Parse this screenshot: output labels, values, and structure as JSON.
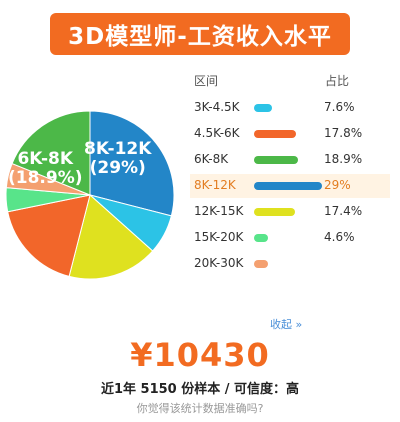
{
  "banner": {
    "title": "3D模型师-工资收入水平"
  },
  "table": {
    "range_header": "区间",
    "share_header": "占比",
    "collapse_label": "收起 »"
  },
  "summary": {
    "amount": "¥10430",
    "meta": "近1年 5150 份样本 / 可信度：高",
    "question": "你觉得该统计数据准确吗?"
  },
  "chart_data": {
    "type": "pie",
    "categories": [
      "3K-4.5K",
      "4.5K-6K",
      "6K-8K",
      "8K-12K",
      "12K-15K",
      "15K-20K",
      "20K-30K"
    ],
    "display_labels": [
      "3K-4.5K",
      "4.5K-6K",
      "6K-8K",
      "8K-12K",
      "12K-15K",
      "15K-20K",
      "20K-30K"
    ],
    "values": [
      7.6,
      17.8,
      18.9,
      29,
      17.4,
      4.6,
      4.7
    ],
    "value_labels": [
      "7.6%",
      "17.8%",
      "18.9%",
      "29%",
      "17.4%",
      "4.6%",
      ""
    ],
    "colors": [
      "#2cc3e6",
      "#f2662a",
      "#4cb848",
      "#2386c8",
      "#dfe11f",
      "#58e48a",
      "#f4a070"
    ],
    "highlight": "8K-12K",
    "slice_labels": [
      {
        "range": "8K-12K",
        "pct": "(29%)"
      },
      {
        "range": "6K-8K",
        "pct": "(18.9%)"
      }
    ]
  }
}
